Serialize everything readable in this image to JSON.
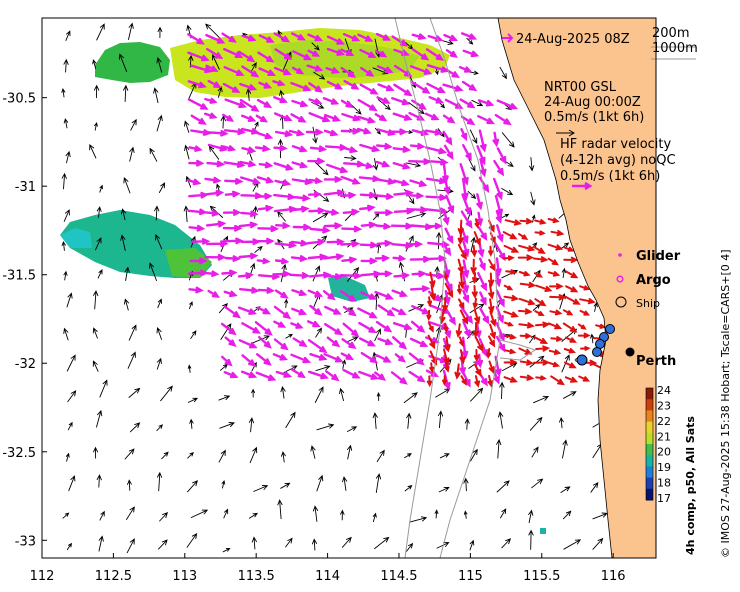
{
  "map": {
    "region": "Perth / Rottnest shelf, Western Australia",
    "lon_ticks": [
      "112",
      "112.5",
      "113",
      "113.5",
      "114",
      "114.5",
      "115",
      "115.5",
      "116"
    ],
    "lat_ticks": [
      "-30.5",
      "-31",
      "-31.5",
      "-32",
      "-32.5",
      "-33"
    ],
    "lon_range": [
      112,
      116.3
    ],
    "lat_range": [
      -33.1,
      -30.05
    ]
  },
  "header": {
    "date_label": "24-Aug-2025 08Z",
    "isobath_200": "200m",
    "isobath_1000": "1000m"
  },
  "legend": {
    "gsl_title": "NRT00 GSL",
    "gsl_time": "24-Aug 00:00Z",
    "gsl_scale": "0.5m/s (1kt 6h)",
    "hf_title": "HF radar velocity",
    "hf_sub": "(4-12h avg) noQC",
    "hf_scale": "0.5m/s (1kt 6h)",
    "glider": "Glider",
    "argo": "Argo",
    "ship": "Ship",
    "city": "Perth"
  },
  "colorbar": {
    "ticks": [
      "24",
      "23",
      "22",
      "21",
      "20",
      "19",
      "18",
      "17"
    ],
    "colors": [
      "#8b1a08",
      "#c9400c",
      "#e8841c",
      "#e9d22a",
      "#b8e02a",
      "#3fbf4c",
      "#18b3a6",
      "#1c7fd9",
      "#1b3fb0",
      "#0a1466"
    ],
    "title": "4h comp, p50, All Sats"
  },
  "credit": "© IMOS 27-Aug-2025 15:38 Hobart; Tscale=CARS+[0 4]",
  "colors": {
    "land": "#fbc48f",
    "hf_radar": "#e01010",
    "gsl_magenta": "#e81ee8",
    "black_arrow": "#000000"
  }
}
